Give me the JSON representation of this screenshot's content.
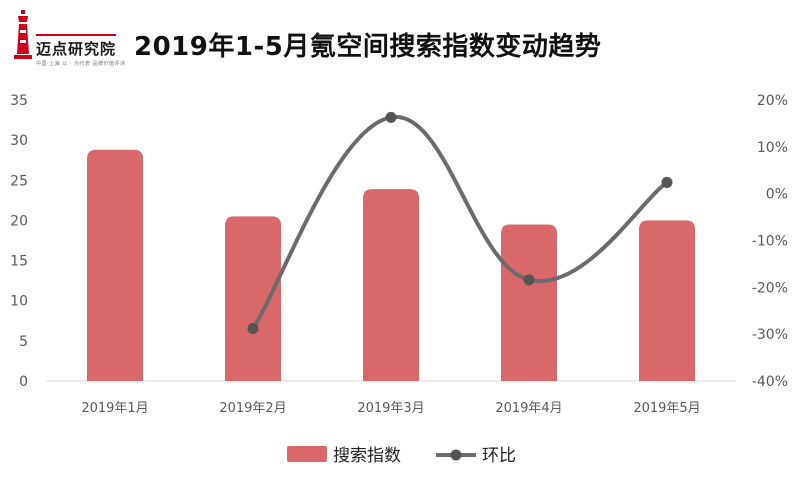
{
  "brand": {
    "name": "迈点研究院",
    "tagline": "中国·上海  以 · 为代表 品牌价值评测"
  },
  "colors": {
    "bar": "#d9686a",
    "line": "#6b6b6b",
    "logo": "#d0021b"
  },
  "chart_data": {
    "type": "bar+line",
    "title": "2019年1-5月氪空间搜索指数变动趋势",
    "categories": [
      "2019年1月",
      "2019年2月",
      "2019年3月",
      "2019年4月",
      "2019年5月"
    ],
    "y_left": {
      "min": 0,
      "max": 35,
      "step": 5,
      "ticks": [
        "0",
        "5",
        "10",
        "15",
        "20",
        "25",
        "30",
        "35"
      ]
    },
    "y_right": {
      "min": -40,
      "max": 20,
      "step": 10,
      "ticks": [
        "-40%",
        "-30%",
        "-20%",
        "-10%",
        "0%",
        "10%",
        "20%"
      ]
    },
    "series": [
      {
        "name": "搜索指数",
        "type": "bar",
        "axis": "left",
        "values": [
          28.8,
          20.5,
          23.9,
          19.5,
          20.0
        ]
      },
      {
        "name": "环比",
        "type": "line",
        "axis": "right",
        "values": [
          null,
          -28.8,
          16.3,
          -18.4,
          2.4
        ]
      }
    ],
    "legend": {
      "position": "bottom",
      "entries": [
        "搜索指数",
        "环比"
      ]
    },
    "grid": false
  }
}
